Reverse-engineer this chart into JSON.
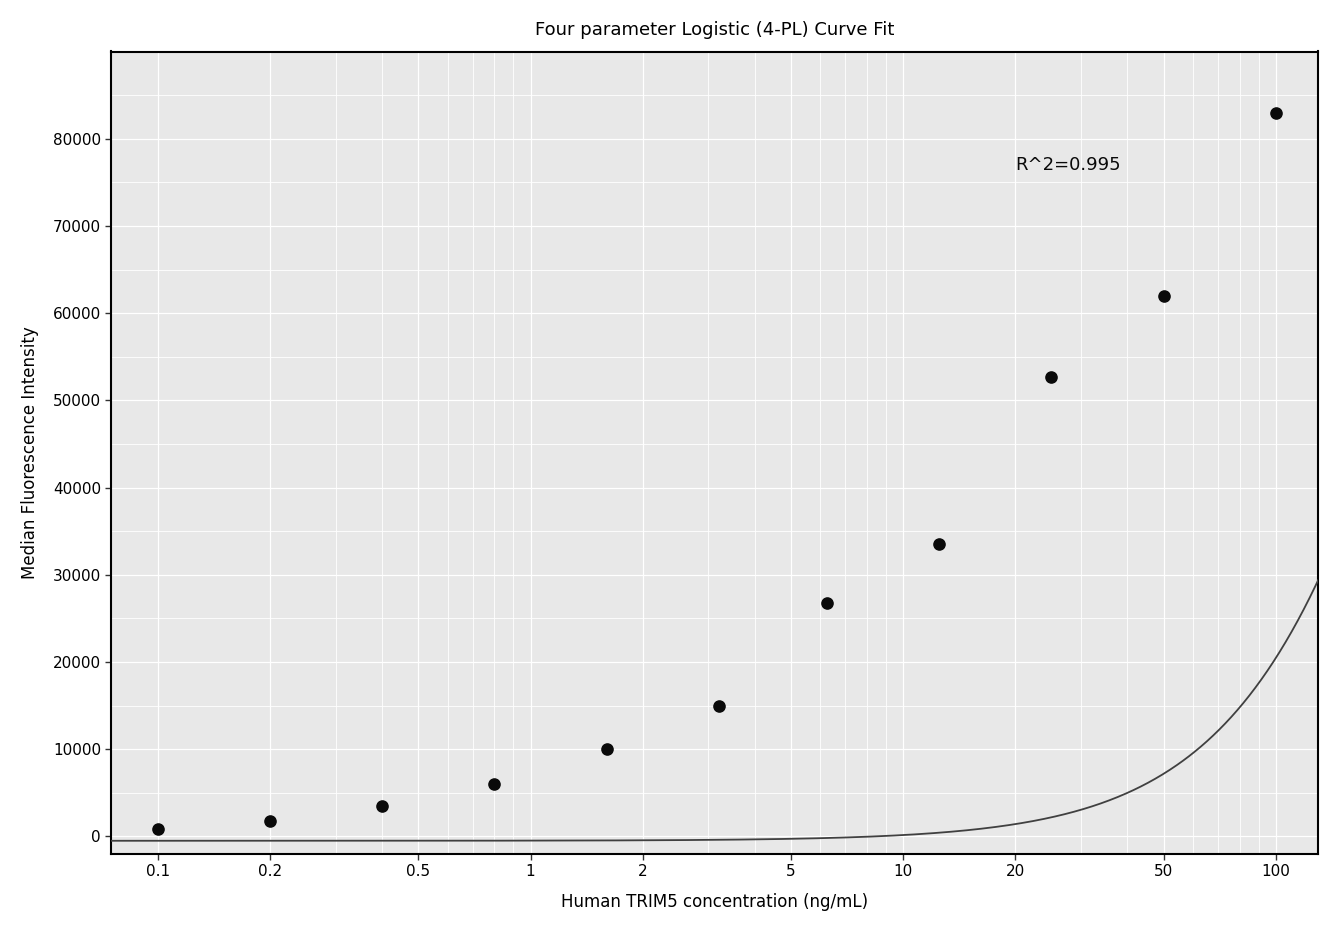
{
  "title": "Four parameter Logistic (4-PL) Curve Fit",
  "xlabel": "Human TRIM5 concentration (ng/mL)",
  "ylabel": "Median Fluorescence Intensity",
  "r_squared_text": "R^2=0.995",
  "r_squared_pos_x": 20,
  "r_squared_pos_y": 77000,
  "data_x": [
    0.1,
    0.2,
    0.4,
    0.8,
    1.6,
    3.2,
    6.25,
    12.5,
    25,
    50,
    100
  ],
  "data_y": [
    900,
    1800,
    3500,
    6000,
    10000,
    15000,
    26800,
    33500,
    52700,
    62000,
    83000
  ],
  "xlim_log": [
    0.075,
    130
  ],
  "xticks": [
    0.1,
    0.2,
    0.5,
    1,
    2,
    5,
    10,
    20,
    50,
    100
  ],
  "xtick_labels": [
    "0.1",
    "0.2",
    "0.5",
    "1",
    "2",
    "5",
    "10",
    "20",
    "50",
    "100"
  ],
  "ylim": [
    -2000,
    90000
  ],
  "yticks": [
    0,
    10000,
    20000,
    30000,
    40000,
    50000,
    60000,
    70000,
    80000
  ],
  "ytick_labels": [
    "0",
    "10000",
    "20000",
    "30000",
    "40000",
    "50000",
    "60000",
    "70000",
    "80000"
  ],
  "background_color": "#ffffff",
  "plot_bg_color": "#e8e8e8",
  "grid_color": "#ffffff",
  "line_color": "#404040",
  "dot_color": "#0a0a0a",
  "title_fontsize": 13,
  "label_fontsize": 12,
  "tick_fontsize": 11,
  "annotation_fontsize": 13,
  "4pl_A": -500,
  "4pl_B": 1.55,
  "4pl_C": 400,
  "4pl_D": 200000
}
